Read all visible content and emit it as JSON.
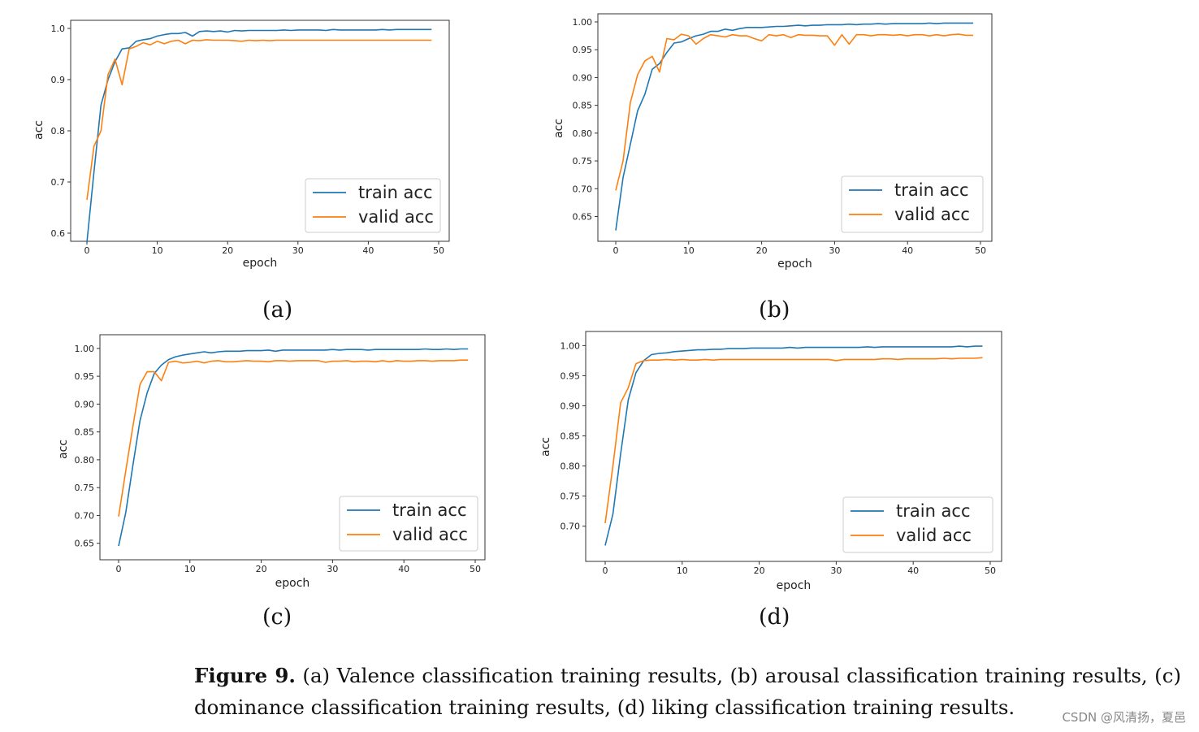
{
  "chart_data": [
    {
      "type": "line",
      "panel": "a",
      "xlabel": "epoch",
      "ylabel": "acc",
      "xlim": [
        0,
        50
      ],
      "ylim": [
        0.6,
        1.0
      ],
      "xticks": [
        "0",
        "10",
        "20",
        "30",
        "40",
        "50"
      ],
      "yticks": [
        "0.6",
        "0.7",
        "0.8",
        "0.9",
        "1.0"
      ],
      "legend": "lower-right",
      "series": [
        {
          "name": "train acc",
          "color": "#1f77b4",
          "x": [
            0,
            1,
            2,
            3,
            4,
            5,
            6,
            7,
            8,
            9,
            10,
            11,
            12,
            13,
            14,
            15,
            16,
            17,
            18,
            19,
            20,
            21,
            22,
            23,
            24,
            25,
            26,
            27,
            28,
            29,
            30,
            31,
            32,
            33,
            34,
            35,
            36,
            37,
            38,
            39,
            40,
            41,
            42,
            43,
            44,
            45,
            46,
            47,
            48,
            49
          ],
          "values": [
            0.582,
            0.72,
            0.85,
            0.9,
            0.935,
            0.96,
            0.962,
            0.975,
            0.978,
            0.98,
            0.985,
            0.988,
            0.99,
            0.99,
            0.992,
            0.985,
            0.994,
            0.995,
            0.994,
            0.995,
            0.993,
            0.996,
            0.995,
            0.996,
            0.996,
            0.996,
            0.996,
            0.996,
            0.997,
            0.996,
            0.997,
            0.997,
            0.997,
            0.997,
            0.996,
            0.998,
            0.997,
            0.997,
            0.997,
            0.997,
            0.997,
            0.997,
            0.998,
            0.997,
            0.998,
            0.998,
            0.998,
            0.998,
            0.998,
            0.998
          ]
        },
        {
          "name": "valid acc",
          "color": "#ff7f0e",
          "x": [
            0,
            1,
            2,
            3,
            4,
            5,
            6,
            7,
            8,
            9,
            10,
            11,
            12,
            13,
            14,
            15,
            16,
            17,
            18,
            19,
            20,
            21,
            22,
            23,
            24,
            25,
            26,
            27,
            28,
            29,
            30,
            31,
            32,
            33,
            34,
            35,
            36,
            37,
            38,
            39,
            40,
            41,
            42,
            43,
            44,
            45,
            46,
            47,
            48,
            49
          ],
          "values": [
            0.665,
            0.77,
            0.8,
            0.91,
            0.94,
            0.89,
            0.96,
            0.965,
            0.972,
            0.968,
            0.975,
            0.97,
            0.975,
            0.977,
            0.97,
            0.977,
            0.976,
            0.978,
            0.977,
            0.977,
            0.977,
            0.976,
            0.975,
            0.977,
            0.976,
            0.977,
            0.976,
            0.977,
            0.977,
            0.977,
            0.977,
            0.977,
            0.977,
            0.977,
            0.977,
            0.977,
            0.977,
            0.977,
            0.977,
            0.977,
            0.977,
            0.977,
            0.977,
            0.977,
            0.977,
            0.977,
            0.977,
            0.977,
            0.977,
            0.977
          ]
        }
      ]
    },
    {
      "type": "line",
      "panel": "b",
      "xlabel": "epoch",
      "ylabel": "acc",
      "xlim": [
        0,
        50
      ],
      "ylim": [
        0.62,
        1.0
      ],
      "xticks": [
        "0",
        "10",
        "20",
        "30",
        "40",
        "50"
      ],
      "yticks": [
        "0.65",
        "0.70",
        "0.75",
        "0.80",
        "0.85",
        "0.90",
        "0.95",
        "1.00"
      ],
      "legend": "lower-right",
      "series": [
        {
          "name": "train acc",
          "color": "#1f77b4",
          "x": [
            0,
            1,
            2,
            3,
            4,
            5,
            6,
            7,
            8,
            9,
            10,
            11,
            12,
            13,
            14,
            15,
            16,
            17,
            18,
            19,
            20,
            21,
            22,
            23,
            24,
            25,
            26,
            27,
            28,
            29,
            30,
            31,
            32,
            33,
            34,
            35,
            36,
            37,
            38,
            39,
            40,
            41,
            42,
            43,
            44,
            45,
            46,
            47,
            48,
            49
          ],
          "values": [
            0.625,
            0.72,
            0.78,
            0.84,
            0.87,
            0.915,
            0.925,
            0.945,
            0.962,
            0.964,
            0.97,
            0.975,
            0.978,
            0.983,
            0.983,
            0.987,
            0.985,
            0.988,
            0.99,
            0.99,
            0.99,
            0.991,
            0.992,
            0.992,
            0.993,
            0.994,
            0.993,
            0.994,
            0.994,
            0.995,
            0.995,
            0.995,
            0.996,
            0.995,
            0.996,
            0.996,
            0.997,
            0.996,
            0.997,
            0.997,
            0.997,
            0.997,
            0.997,
            0.998,
            0.997,
            0.998,
            0.998,
            0.998,
            0.998,
            0.998
          ]
        },
        {
          "name": "valid acc",
          "color": "#ff7f0e",
          "x": [
            0,
            1,
            2,
            3,
            4,
            5,
            6,
            7,
            8,
            9,
            10,
            11,
            12,
            13,
            14,
            15,
            16,
            17,
            18,
            19,
            20,
            21,
            22,
            23,
            24,
            25,
            26,
            27,
            28,
            29,
            30,
            31,
            32,
            33,
            34,
            35,
            36,
            37,
            38,
            39,
            40,
            41,
            42,
            43,
            44,
            45,
            46,
            47,
            48,
            49
          ],
          "values": [
            0.697,
            0.75,
            0.855,
            0.905,
            0.93,
            0.938,
            0.91,
            0.97,
            0.968,
            0.978,
            0.975,
            0.96,
            0.97,
            0.977,
            0.975,
            0.973,
            0.977,
            0.975,
            0.975,
            0.97,
            0.966,
            0.977,
            0.975,
            0.977,
            0.972,
            0.977,
            0.976,
            0.976,
            0.975,
            0.975,
            0.958,
            0.977,
            0.96,
            0.977,
            0.977,
            0.975,
            0.977,
            0.977,
            0.976,
            0.977,
            0.975,
            0.977,
            0.977,
            0.975,
            0.977,
            0.975,
            0.977,
            0.978,
            0.976,
            0.976
          ]
        }
      ]
    },
    {
      "type": "line",
      "panel": "c",
      "xlabel": "epoch",
      "ylabel": "acc",
      "xlim": [
        0,
        50
      ],
      "ylim": [
        0.635,
        1.01
      ],
      "xticks": [
        "0",
        "10",
        "20",
        "30",
        "40",
        "50"
      ],
      "yticks": [
        "0.65",
        "0.70",
        "0.75",
        "0.80",
        "0.85",
        "0.90",
        "0.95",
        "1.00"
      ],
      "legend": "lower-right",
      "series": [
        {
          "name": "train acc",
          "color": "#1f77b4",
          "x": [
            0,
            1,
            2,
            3,
            4,
            5,
            6,
            7,
            8,
            9,
            10,
            11,
            12,
            13,
            14,
            15,
            16,
            17,
            18,
            19,
            20,
            21,
            22,
            23,
            24,
            25,
            26,
            27,
            28,
            29,
            30,
            31,
            32,
            33,
            34,
            35,
            36,
            37,
            38,
            39,
            40,
            41,
            42,
            43,
            44,
            45,
            46,
            47,
            48,
            49
          ],
          "values": [
            0.645,
            0.705,
            0.79,
            0.87,
            0.92,
            0.955,
            0.97,
            0.98,
            0.985,
            0.988,
            0.99,
            0.992,
            0.994,
            0.992,
            0.994,
            0.995,
            0.995,
            0.995,
            0.996,
            0.996,
            0.996,
            0.997,
            0.995,
            0.997,
            0.997,
            0.997,
            0.997,
            0.997,
            0.997,
            0.997,
            0.998,
            0.997,
            0.998,
            0.998,
            0.998,
            0.997,
            0.998,
            0.998,
            0.998,
            0.998,
            0.998,
            0.998,
            0.998,
            0.999,
            0.998,
            0.998,
            0.999,
            0.998,
            0.999,
            0.999
          ]
        },
        {
          "name": "valid acc",
          "color": "#ff7f0e",
          "x": [
            0,
            1,
            2,
            3,
            4,
            5,
            6,
            7,
            8,
            9,
            10,
            11,
            12,
            13,
            14,
            15,
            16,
            17,
            18,
            19,
            20,
            21,
            22,
            23,
            24,
            25,
            26,
            27,
            28,
            29,
            30,
            31,
            32,
            33,
            34,
            35,
            36,
            37,
            38,
            39,
            40,
            41,
            42,
            43,
            44,
            45,
            46,
            47,
            48,
            49
          ],
          "values": [
            0.698,
            0.78,
            0.86,
            0.935,
            0.958,
            0.958,
            0.942,
            0.975,
            0.977,
            0.974,
            0.975,
            0.977,
            0.974,
            0.977,
            0.978,
            0.976,
            0.976,
            0.977,
            0.978,
            0.977,
            0.977,
            0.976,
            0.978,
            0.978,
            0.977,
            0.978,
            0.978,
            0.978,
            0.978,
            0.975,
            0.977,
            0.977,
            0.978,
            0.976,
            0.977,
            0.977,
            0.976,
            0.978,
            0.976,
            0.978,
            0.977,
            0.977,
            0.978,
            0.978,
            0.977,
            0.978,
            0.978,
            0.978,
            0.979,
            0.979
          ]
        }
      ]
    },
    {
      "type": "line",
      "panel": "d",
      "xlabel": "epoch",
      "ylabel": "acc",
      "xlim": [
        0,
        50
      ],
      "ylim": [
        0.655,
        1.01
      ],
      "xticks": [
        "0",
        "10",
        "20",
        "30",
        "40",
        "50"
      ],
      "yticks": [
        "0.70",
        "0.75",
        "0.80",
        "0.85",
        "0.90",
        "0.95",
        "1.00"
      ],
      "legend": "lower-right",
      "series": [
        {
          "name": "train acc",
          "color": "#1f77b4",
          "x": [
            0,
            1,
            2,
            3,
            4,
            5,
            6,
            7,
            8,
            9,
            10,
            11,
            12,
            13,
            14,
            15,
            16,
            17,
            18,
            19,
            20,
            21,
            22,
            23,
            24,
            25,
            26,
            27,
            28,
            29,
            30,
            31,
            32,
            33,
            34,
            35,
            36,
            37,
            38,
            39,
            40,
            41,
            42,
            43,
            44,
            45,
            46,
            47,
            48,
            49
          ],
          "values": [
            0.668,
            0.72,
            0.82,
            0.91,
            0.955,
            0.975,
            0.985,
            0.987,
            0.988,
            0.99,
            0.991,
            0.992,
            0.993,
            0.993,
            0.994,
            0.994,
            0.995,
            0.995,
            0.995,
            0.996,
            0.996,
            0.996,
            0.996,
            0.996,
            0.997,
            0.996,
            0.997,
            0.997,
            0.997,
            0.997,
            0.997,
            0.997,
            0.997,
            0.997,
            0.998,
            0.997,
            0.998,
            0.998,
            0.998,
            0.998,
            0.998,
            0.998,
            0.998,
            0.998,
            0.998,
            0.998,
            0.999,
            0.998,
            0.999,
            0.999
          ]
        },
        {
          "name": "valid acc",
          "color": "#ff7f0e",
          "x": [
            0,
            1,
            2,
            3,
            4,
            5,
            6,
            7,
            8,
            9,
            10,
            11,
            12,
            13,
            14,
            15,
            16,
            17,
            18,
            19,
            20,
            21,
            22,
            23,
            24,
            25,
            26,
            27,
            28,
            29,
            30,
            31,
            32,
            33,
            34,
            35,
            36,
            37,
            38,
            39,
            40,
            41,
            42,
            43,
            44,
            45,
            46,
            47,
            48,
            49
          ],
          "values": [
            0.705,
            0.8,
            0.905,
            0.93,
            0.97,
            0.975,
            0.976,
            0.976,
            0.977,
            0.976,
            0.977,
            0.976,
            0.976,
            0.977,
            0.976,
            0.977,
            0.977,
            0.977,
            0.977,
            0.977,
            0.977,
            0.977,
            0.977,
            0.977,
            0.977,
            0.977,
            0.977,
            0.977,
            0.977,
            0.977,
            0.975,
            0.977,
            0.977,
            0.977,
            0.977,
            0.977,
            0.978,
            0.978,
            0.977,
            0.978,
            0.978,
            0.978,
            0.978,
            0.978,
            0.979,
            0.978,
            0.979,
            0.979,
            0.979,
            0.98
          ]
        }
      ]
    }
  ],
  "panel_labels": [
    "(a)",
    "(b)",
    "(c)",
    "(d)"
  ],
  "caption": {
    "figure_label": "Figure 9.",
    "text": "(a) Valence classification training results, (b) arousal classification training results, (c) dominance classification training results, (d) liking classification training results."
  },
  "watermark": "CSDN @风清扬，夏邑"
}
